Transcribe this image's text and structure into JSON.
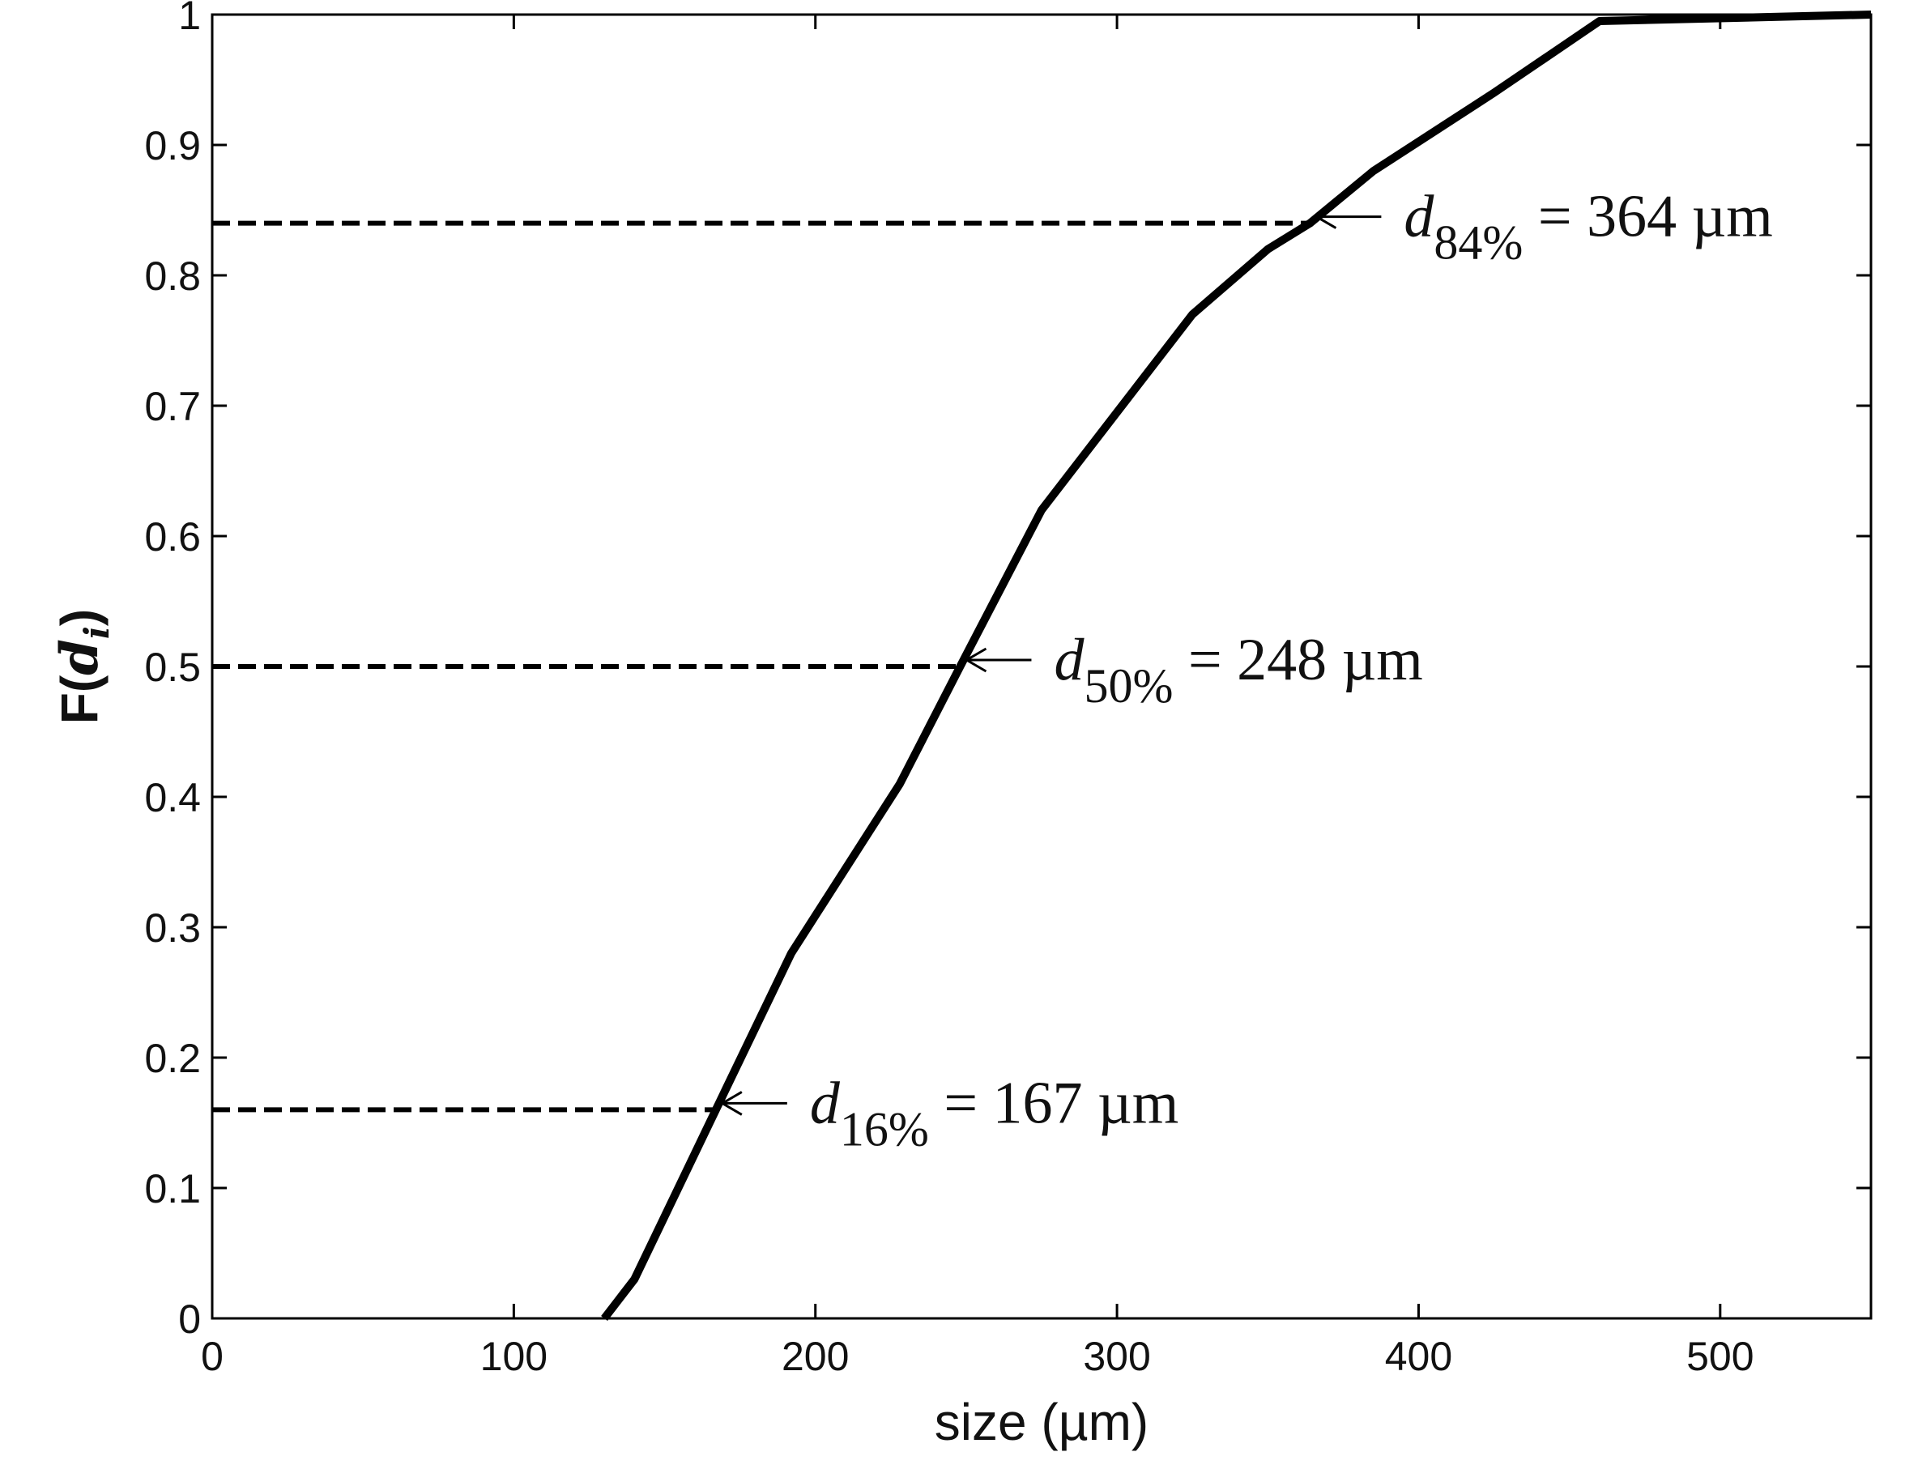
{
  "chart_data": {
    "type": "line",
    "title": "",
    "xlabel": "size (µm)",
    "ylabel": {
      "prefix": "F(",
      "var": "d",
      "sub": "i",
      "suffix": ")"
    },
    "xlim": [
      0,
      550
    ],
    "ylim": [
      0,
      1
    ],
    "x_ticks": [
      0,
      100,
      200,
      300,
      400,
      500
    ],
    "x_tick_labels": [
      "0",
      "100",
      "200",
      "300",
      "400",
      "500"
    ],
    "y_ticks": [
      0,
      0.1,
      0.2,
      0.3,
      0.4,
      0.5,
      0.6,
      0.7,
      0.8,
      0.9,
      1
    ],
    "y_tick_labels": [
      "0",
      "0.1",
      "0.2",
      "0.3",
      "0.4",
      "0.5",
      "0.6",
      "0.7",
      "0.8",
      "0.9",
      "1"
    ],
    "grid": false,
    "series": [
      {
        "x": [
          130,
          140,
          167,
          192,
          228,
          248,
          275,
          325,
          350,
          364,
          385,
          425,
          460,
          550
        ],
        "y": [
          0,
          0.03,
          0.16,
          0.28,
          0.41,
          0.5,
          0.62,
          0.77,
          0.82,
          0.84,
          0.88,
          0.94,
          0.995,
          1.0
        ],
        "color": "#000000",
        "style": "solid"
      }
    ],
    "annotations": [
      {
        "var": "d",
        "sub": "16%",
        "rest": " = 167 µm",
        "x": 167,
        "y": 0.16
      },
      {
        "var": "d",
        "sub": "50%",
        "rest": " = 248 µm",
        "x": 248,
        "y": 0.5
      },
      {
        "var": "d",
        "sub": "84%",
        "rest": " = 364 µm",
        "x": 364,
        "y": 0.84
      }
    ]
  }
}
